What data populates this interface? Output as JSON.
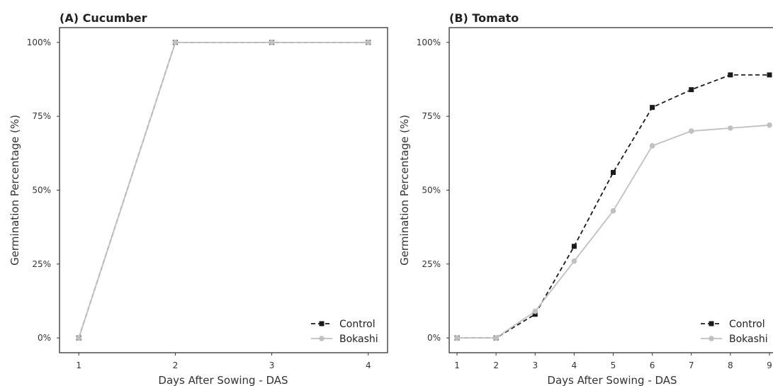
{
  "chart_data": [
    {
      "type": "line",
      "title": "(A) Cucumber",
      "xlabel": "Days After Sowing - DAS",
      "ylabel": "Germination Percentage (%)",
      "x": [
        1,
        2,
        3,
        4
      ],
      "x_ticks": [
        "1",
        "2",
        "3",
        "4"
      ],
      "xlim": [
        0.8,
        4.2
      ],
      "ylim": [
        -5,
        105
      ],
      "y_ticks": [
        0,
        25,
        50,
        75,
        100
      ],
      "y_tick_labels": [
        "0%",
        "25%",
        "50%",
        "75%",
        "100%"
      ],
      "grid": false,
      "legend": "bottom-right",
      "series": [
        {
          "name": "Control",
          "values": [
            0,
            100,
            100,
            100
          ],
          "color": "#1a1a1a",
          "linestyle": "dashed",
          "marker": "square"
        },
        {
          "name": "Bokashi",
          "values": [
            0,
            100,
            100,
            100
          ],
          "color": "#c0c0c0",
          "linestyle": "solid",
          "marker": "circle"
        }
      ]
    },
    {
      "type": "line",
      "title": "(B) Tomato",
      "xlabel": "Days After Sowing - DAS",
      "ylabel": "Germination Percentage (%)",
      "x": [
        1,
        2,
        3,
        4,
        5,
        6,
        7,
        8,
        9
      ],
      "x_ticks": [
        "1",
        "2",
        "3",
        "4",
        "5",
        "6",
        "7",
        "8",
        "9"
      ],
      "xlim": [
        0.8,
        9.2
      ],
      "ylim": [
        -5,
        105
      ],
      "y_ticks": [
        0,
        25,
        50,
        75,
        100
      ],
      "y_tick_labels": [
        "0%",
        "25%",
        "50%",
        "75%",
        "100%"
      ],
      "grid": false,
      "legend": "bottom-right",
      "series": [
        {
          "name": "Control",
          "values": [
            0,
            0,
            8,
            31,
            56,
            78,
            84,
            89,
            89
          ],
          "color": "#1a1a1a",
          "linestyle": "dashed",
          "marker": "square"
        },
        {
          "name": "Bokashi",
          "values": [
            0,
            0,
            9,
            26,
            43,
            65,
            70,
            71,
            72
          ],
          "color": "#c0c0c0",
          "linestyle": "solid",
          "marker": "circle"
        }
      ]
    }
  ]
}
